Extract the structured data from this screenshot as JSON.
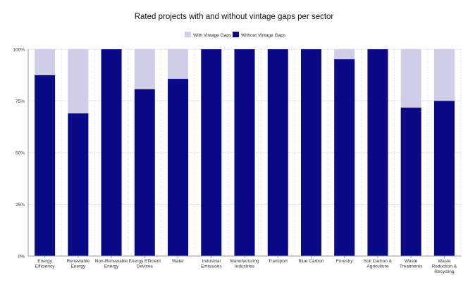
{
  "chart_data": {
    "type": "bar",
    "stacked": true,
    "normalized": true,
    "title": "Rated projects with and without vintage gaps per sector",
    "xlabel": "",
    "ylabel": "",
    "ylim": [
      0,
      100
    ],
    "yticks": [
      "0%",
      "25%",
      "50%",
      "75%",
      "100%"
    ],
    "ytick_values": [
      0,
      25,
      50,
      75,
      100
    ],
    "legend_position": "top-center",
    "grid": true,
    "categories": [
      [
        "Energy",
        "Efficiency"
      ],
      [
        "Renewable",
        "Energy"
      ],
      [
        "Non-Renewable",
        "Energy"
      ],
      [
        "Energy Efficient",
        "Devices"
      ],
      [
        "Water"
      ],
      [
        "Industrial",
        "Emissions"
      ],
      [
        "Manufacturing",
        "Industries"
      ],
      [
        "Transport"
      ],
      [
        "Blue Carbon"
      ],
      [
        "Forestry"
      ],
      [
        "Soil Carbon &",
        "Agriculture"
      ],
      [
        "Waste",
        "Treatments"
      ],
      [
        "Waste",
        "Reduction &",
        "Recycling"
      ]
    ],
    "series": [
      {
        "name": "Without Vintage Gaps",
        "color": "#0a0a86",
        "values": [
          87.5,
          69,
          100,
          80.7,
          85.7,
          100,
          100,
          100,
          100,
          95.2,
          100,
          71.8,
          75
        ]
      },
      {
        "name": "With Vintage Gaps",
        "color": "#cfcde8",
        "values": [
          12.5,
          31,
          0,
          19.3,
          14.3,
          0,
          0,
          0,
          0,
          4.8,
          0,
          28.2,
          25
        ]
      }
    ],
    "legend": [
      {
        "name": "With Vintage Gaps",
        "color": "#cfcde8"
      },
      {
        "name": "Without Vintage Gaps",
        "color": "#0a0a86"
      }
    ]
  }
}
